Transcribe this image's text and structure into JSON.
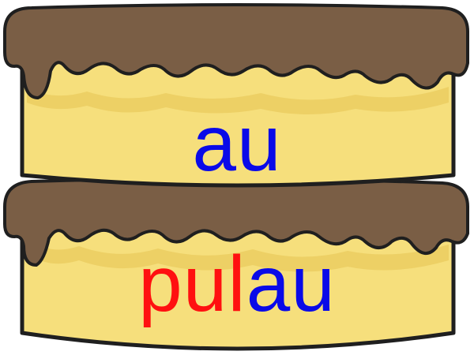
{
  "colors": {
    "cake": "#f6df7c",
    "cake_shade": "#eacb5e",
    "frosting": "#7a5e45",
    "outline": "#1f1f1f",
    "vowel_text": "#0a0ae8",
    "consonant_text": "#ff1010"
  },
  "cake": {
    "layers": [
      {
        "id": "top-layer",
        "parts": [
          {
            "text": "au",
            "color": "#0a0ae8"
          }
        ]
      },
      {
        "id": "bottom-layer",
        "parts": [
          {
            "text": "pul",
            "color": "#ff1010"
          },
          {
            "text": "au",
            "color": "#0a0ae8"
          }
        ]
      }
    ]
  }
}
